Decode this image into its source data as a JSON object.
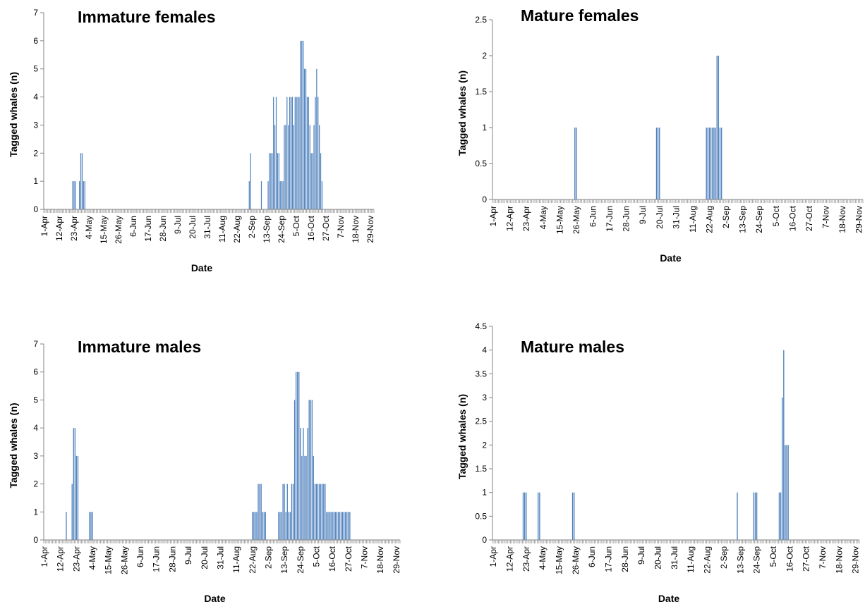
{
  "chart_data": [
    {
      "type": "bar",
      "title": "Immature females",
      "xlabel": "Date",
      "ylabel": "Tagged whales (n)",
      "ylim": [
        0,
        7
      ],
      "yticks": [
        "0",
        "1",
        "2",
        "3",
        "4",
        "5",
        "6",
        "7"
      ],
      "tick_labels": [
        "1-Apr",
        "12-Apr",
        "23-Apr",
        "4-May",
        "15-May",
        "26-May",
        "6-Jun",
        "17-Jun",
        "28-Jun",
        "9-Jul",
        "20-Jul",
        "31-Jul",
        "11-Aug",
        "22-Aug",
        "2-Sep",
        "13-Sep",
        "24-Sep",
        "5-Oct",
        "16-Oct",
        "27-Oct",
        "7-Nov",
        "18-Nov",
        "29-Nov"
      ],
      "bar_color": "#4f81bd",
      "bars": [
        {
          "date": "22-Apr",
          "value": 1
        },
        {
          "date": "23-Apr",
          "value": 1
        },
        {
          "date": "24-Apr",
          "value": 1
        },
        {
          "date": "27-Apr",
          "value": 1
        },
        {
          "date": "28-Apr",
          "value": 2
        },
        {
          "date": "29-Apr",
          "value": 2
        },
        {
          "date": "30-Apr",
          "value": 1
        },
        {
          "date": "1-May",
          "value": 1
        },
        {
          "date": "31-Aug",
          "value": 1
        },
        {
          "date": "1-Sep",
          "value": 2
        },
        {
          "date": "9-Sep",
          "value": 1
        },
        {
          "date": "14-Sep",
          "value": 1
        },
        {
          "date": "15-Sep",
          "value": 2
        },
        {
          "date": "16-Sep",
          "value": 2
        },
        {
          "date": "17-Sep",
          "value": 2
        },
        {
          "date": "18-Sep",
          "value": 4
        },
        {
          "date": "19-Sep",
          "value": 3
        },
        {
          "date": "20-Sep",
          "value": 4
        },
        {
          "date": "21-Sep",
          "value": 2
        },
        {
          "date": "22-Sep",
          "value": 2
        },
        {
          "date": "23-Sep",
          "value": 1
        },
        {
          "date": "24-Sep",
          "value": 1
        },
        {
          "date": "25-Sep",
          "value": 1
        },
        {
          "date": "26-Sep",
          "value": 3
        },
        {
          "date": "27-Sep",
          "value": 3
        },
        {
          "date": "28-Sep",
          "value": 4
        },
        {
          "date": "29-Sep",
          "value": 3
        },
        {
          "date": "30-Sep",
          "value": 4
        },
        {
          "date": "1-Oct",
          "value": 4
        },
        {
          "date": "2-Oct",
          "value": 4
        },
        {
          "date": "3-Oct",
          "value": 3
        },
        {
          "date": "4-Oct",
          "value": 4
        },
        {
          "date": "5-Oct",
          "value": 4
        },
        {
          "date": "6-Oct",
          "value": 4
        },
        {
          "date": "7-Oct",
          "value": 4
        },
        {
          "date": "8-Oct",
          "value": 6
        },
        {
          "date": "9-Oct",
          "value": 6
        },
        {
          "date": "10-Oct",
          "value": 6
        },
        {
          "date": "11-Oct",
          "value": 5
        },
        {
          "date": "12-Oct",
          "value": 5
        },
        {
          "date": "13-Oct",
          "value": 4
        },
        {
          "date": "14-Oct",
          "value": 4
        },
        {
          "date": "15-Oct",
          "value": 3
        },
        {
          "date": "16-Oct",
          "value": 2
        },
        {
          "date": "17-Oct",
          "value": 2
        },
        {
          "date": "18-Oct",
          "value": 3
        },
        {
          "date": "19-Oct",
          "value": 4
        },
        {
          "date": "20-Oct",
          "value": 5
        },
        {
          "date": "21-Oct",
          "value": 4
        },
        {
          "date": "22-Oct",
          "value": 3
        },
        {
          "date": "23-Oct",
          "value": 2
        },
        {
          "date": "24-Oct",
          "value": 1
        }
      ]
    },
    {
      "type": "bar",
      "title": "Mature females",
      "xlabel": "Date",
      "ylabel": "Tagged whales (n)",
      "ylim": [
        0,
        2.5
      ],
      "yticks": [
        "0",
        "0.5",
        "1",
        "1.5",
        "2",
        "2.5"
      ],
      "tick_labels": [
        "1-Apr",
        "12-Apr",
        "23-Apr",
        "4-May",
        "15-May",
        "26-May",
        "6-Jun",
        "17-Jun",
        "28-Jun",
        "9-Jul",
        "20-Jul",
        "31-Jul",
        "11-Aug",
        "22-Aug",
        "2-Sep",
        "13-Sep",
        "24-Sep",
        "5-Oct",
        "16-Oct",
        "27-Oct",
        "7-Nov",
        "18-Nov",
        "29-Nov"
      ],
      "bar_color": "#4f81bd",
      "bars": [
        {
          "date": "25-May",
          "value": 1
        },
        {
          "date": "26-May",
          "value": 1
        },
        {
          "date": "18-Jul",
          "value": 1
        },
        {
          "date": "19-Jul",
          "value": 1
        },
        {
          "date": "20-Jul",
          "value": 1
        },
        {
          "date": "20-Aug",
          "value": 1
        },
        {
          "date": "21-Aug",
          "value": 1
        },
        {
          "date": "22-Aug",
          "value": 1
        },
        {
          "date": "23-Aug",
          "value": 1
        },
        {
          "date": "24-Aug",
          "value": 1
        },
        {
          "date": "25-Aug",
          "value": 1
        },
        {
          "date": "26-Aug",
          "value": 1
        },
        {
          "date": "27-Aug",
          "value": 2
        },
        {
          "date": "28-Aug",
          "value": 2
        },
        {
          "date": "29-Aug",
          "value": 1
        },
        {
          "date": "30-Aug",
          "value": 1
        }
      ]
    },
    {
      "type": "bar",
      "title": "Immature males",
      "xlabel": "Date",
      "ylabel": "Tagged whales (n)",
      "ylim": [
        0,
        7
      ],
      "yticks": [
        "0",
        "1",
        "2",
        "3",
        "4",
        "5",
        "6",
        "7"
      ],
      "tick_labels": [
        "1-Apr",
        "12-Apr",
        "23-Apr",
        "4-May",
        "15-May",
        "26-May",
        "6-Jun",
        "17-Jun",
        "28-Jun",
        "9-Jul",
        "20-Jul",
        "31-Jul",
        "11-Aug",
        "22-Aug",
        "2-Sep",
        "13-Sep",
        "24-Sep",
        "5-Oct",
        "16-Oct",
        "27-Oct",
        "7-Nov",
        "18-Nov",
        "29-Nov"
      ],
      "bar_color": "#4f81bd",
      "bars": [
        {
          "date": "16-Apr",
          "value": 1
        },
        {
          "date": "20-Apr",
          "value": 2
        },
        {
          "date": "21-Apr",
          "value": 4
        },
        {
          "date": "22-Apr",
          "value": 4
        },
        {
          "date": "23-Apr",
          "value": 3
        },
        {
          "date": "24-Apr",
          "value": 3
        },
        {
          "date": "2-May",
          "value": 1
        },
        {
          "date": "3-May",
          "value": 1
        },
        {
          "date": "4-May",
          "value": 1
        },
        {
          "date": "22-Aug",
          "value": 1
        },
        {
          "date": "23-Aug",
          "value": 1
        },
        {
          "date": "24-Aug",
          "value": 1
        },
        {
          "date": "25-Aug",
          "value": 1
        },
        {
          "date": "26-Aug",
          "value": 2
        },
        {
          "date": "27-Aug",
          "value": 2
        },
        {
          "date": "28-Aug",
          "value": 2
        },
        {
          "date": "29-Aug",
          "value": 1
        },
        {
          "date": "30-Aug",
          "value": 1
        },
        {
          "date": "31-Aug",
          "value": 1
        },
        {
          "date": "9-Sep",
          "value": 1
        },
        {
          "date": "10-Sep",
          "value": 1
        },
        {
          "date": "11-Sep",
          "value": 1
        },
        {
          "date": "12-Sep",
          "value": 2
        },
        {
          "date": "13-Sep",
          "value": 2
        },
        {
          "date": "14-Sep",
          "value": 1
        },
        {
          "date": "15-Sep",
          "value": 2
        },
        {
          "date": "16-Sep",
          "value": 1
        },
        {
          "date": "17-Sep",
          "value": 1
        },
        {
          "date": "18-Sep",
          "value": 2
        },
        {
          "date": "19-Sep",
          "value": 2
        },
        {
          "date": "20-Sep",
          "value": 5
        },
        {
          "date": "21-Sep",
          "value": 6
        },
        {
          "date": "22-Sep",
          "value": 6
        },
        {
          "date": "23-Sep",
          "value": 6
        },
        {
          "date": "24-Sep",
          "value": 4
        },
        {
          "date": "25-Sep",
          "value": 3
        },
        {
          "date": "26-Sep",
          "value": 4
        },
        {
          "date": "27-Sep",
          "value": 3
        },
        {
          "date": "28-Sep",
          "value": 3
        },
        {
          "date": "29-Sep",
          "value": 4
        },
        {
          "date": "30-Sep",
          "value": 5
        },
        {
          "date": "1-Oct",
          "value": 5
        },
        {
          "date": "2-Oct",
          "value": 5
        },
        {
          "date": "3-Oct",
          "value": 3
        },
        {
          "date": "4-Oct",
          "value": 2
        },
        {
          "date": "5-Oct",
          "value": 2
        },
        {
          "date": "6-Oct",
          "value": 2
        },
        {
          "date": "7-Oct",
          "value": 2
        },
        {
          "date": "8-Oct",
          "value": 2
        },
        {
          "date": "9-Oct",
          "value": 2
        },
        {
          "date": "10-Oct",
          "value": 2
        },
        {
          "date": "11-Oct",
          "value": 2
        },
        {
          "date": "12-Oct",
          "value": 1
        },
        {
          "date": "13-Oct",
          "value": 1
        },
        {
          "date": "14-Oct",
          "value": 1
        },
        {
          "date": "15-Oct",
          "value": 1
        },
        {
          "date": "16-Oct",
          "value": 1
        },
        {
          "date": "17-Oct",
          "value": 1
        },
        {
          "date": "18-Oct",
          "value": 1
        },
        {
          "date": "19-Oct",
          "value": 1
        },
        {
          "date": "20-Oct",
          "value": 1
        },
        {
          "date": "21-Oct",
          "value": 1
        },
        {
          "date": "22-Oct",
          "value": 1
        },
        {
          "date": "23-Oct",
          "value": 1
        },
        {
          "date": "24-Oct",
          "value": 1
        },
        {
          "date": "25-Oct",
          "value": 1
        },
        {
          "date": "26-Oct",
          "value": 1
        },
        {
          "date": "27-Oct",
          "value": 1
        },
        {
          "date": "28-Oct",
          "value": 1
        }
      ]
    },
    {
      "type": "bar",
      "title": "Mature males",
      "xlabel": "Date",
      "ylabel": "Tagged whales (n)",
      "ylim": [
        0,
        4.5
      ],
      "yticks": [
        "0",
        "0.5",
        "1",
        "1.5",
        "2",
        "2.5",
        "3",
        "3.5",
        "4",
        "4.5"
      ],
      "tick_labels": [
        "1-Apr",
        "12-Apr",
        "23-Apr",
        "4-May",
        "15-May",
        "26-May",
        "6-Jun",
        "17-Jun",
        "28-Jun",
        "9-Jul",
        "20-Jul",
        "31-Jul",
        "11-Aug",
        "22-Aug",
        "2-Sep",
        "13-Sep",
        "24-Sep",
        "5-Oct",
        "16-Oct",
        "27-Oct",
        "7-Nov",
        "18-Nov",
        "29-Nov"
      ],
      "bar_color": "#4f81bd",
      "bars": [
        {
          "date": "21-Apr",
          "value": 1
        },
        {
          "date": "22-Apr",
          "value": 1
        },
        {
          "date": "23-Apr",
          "value": 1
        },
        {
          "date": "1-May",
          "value": 1
        },
        {
          "date": "2-May",
          "value": 1
        },
        {
          "date": "24-May",
          "value": 1
        },
        {
          "date": "25-May",
          "value": 1
        },
        {
          "date": "11-Sep",
          "value": 1
        },
        {
          "date": "22-Sep",
          "value": 1
        },
        {
          "date": "23-Sep",
          "value": 1
        },
        {
          "date": "24-Sep",
          "value": 1
        },
        {
          "date": "9-Oct",
          "value": 1
        },
        {
          "date": "10-Oct",
          "value": 1
        },
        {
          "date": "11-Oct",
          "value": 3
        },
        {
          "date": "12-Oct",
          "value": 4
        },
        {
          "date": "13-Oct",
          "value": 2
        },
        {
          "date": "14-Oct",
          "value": 2
        },
        {
          "date": "15-Oct",
          "value": 2
        }
      ]
    }
  ]
}
